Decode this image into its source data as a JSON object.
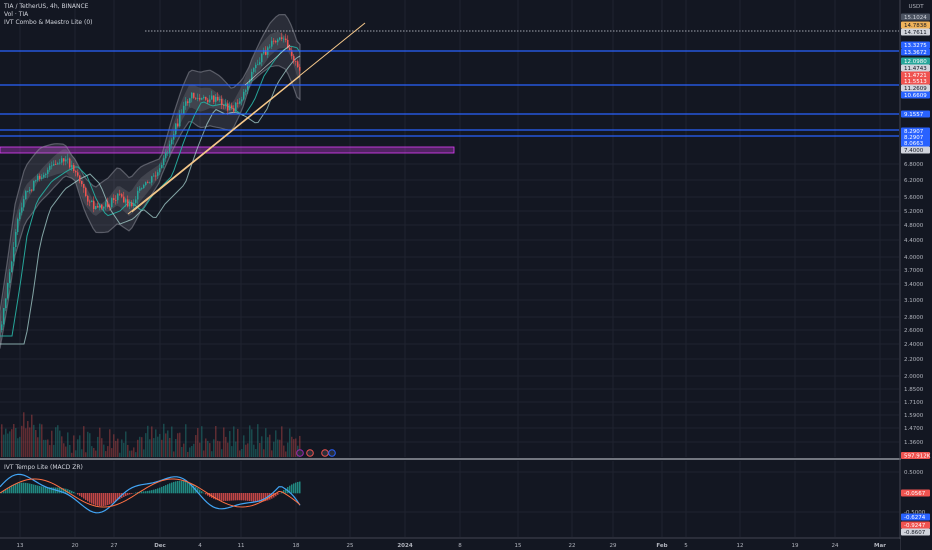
{
  "header": {
    "symbol_line": "TIA / TetherUS, 4h, BINANCE",
    "volume_line": "Vol · TIA",
    "indicator_line": "IVT Combo & Maestro Lite (0)",
    "oscillator_line": "IVT Tempo Lite (MACD ZR)"
  },
  "price_axis": {
    "currency": "USDT",
    "ticks": [
      "6.8000",
      "6.2000",
      "5.6000",
      "5.2000",
      "4.8000",
      "4.4000",
      "4.0000",
      "3.7000",
      "3.4000",
      "3.1000",
      "2.8000",
      "2.6000",
      "2.4000",
      "2.2000",
      "2.0000",
      "1.8500",
      "1.7100",
      "1.5900",
      "1.4700",
      "1.3600"
    ],
    "tags": [
      {
        "text": "15.1024",
        "color": "#4b5361",
        "fg": "#d1d4dc"
      },
      {
        "text": "14.7838",
        "color": "#f0b35a",
        "fg": "#131722"
      },
      {
        "text": "14.7611",
        "color": "#d1d4dc",
        "fg": "#131722"
      },
      {
        "text": "13.3275",
        "color": "#2962ff",
        "fg": "#ffffff"
      },
      {
        "text": "13.3672",
        "color": "#2962ff",
        "fg": "#ffffff"
      },
      {
        "text": "12.0980",
        "color": "#26a69a",
        "fg": "#ffffff"
      },
      {
        "text": "11.4743",
        "color": "#d1d4dc",
        "fg": "#131722"
      },
      {
        "text": "11.4721",
        "color": "#ef5350",
        "fg": "#ffffff"
      },
      {
        "text": "11.5513",
        "color": "#ef5350",
        "fg": "#ffffff"
      },
      {
        "text": "11.2609",
        "color": "#d1d4dc",
        "fg": "#131722"
      },
      {
        "text": "10.6609",
        "color": "#2962ff",
        "fg": "#ffffff"
      },
      {
        "text": "9.1557",
        "color": "#2962ff",
        "fg": "#ffffff"
      },
      {
        "text": "8.2907",
        "color": "#2962ff",
        "fg": "#ffffff"
      },
      {
        "text": "8.2907",
        "color": "#2962ff",
        "fg": "#ffffff"
      },
      {
        "text": "8.0663",
        "color": "#2962ff",
        "fg": "#ffffff"
      },
      {
        "text": "7.4000",
        "color": "#d1d4dc",
        "fg": "#131722"
      }
    ],
    "volume_tag": {
      "text": "597.912K",
      "color": "#ef5350",
      "fg": "#ffffff"
    }
  },
  "osc_axis": {
    "ticks": [
      "0.5000",
      "-0.5000"
    ],
    "tags": [
      {
        "text": "-0.0567",
        "color": "#ef5350",
        "fg": "#ffffff"
      },
      {
        "text": "-0.6274",
        "color": "#2962ff",
        "fg": "#ffffff"
      },
      {
        "text": "-0.9247",
        "color": "#ef5350",
        "fg": "#ffffff"
      },
      {
        "text": "-0.8607",
        "color": "#d1d4dc",
        "fg": "#131722"
      }
    ]
  },
  "time_axis": {
    "labels": [
      "13",
      "20",
      "27",
      "Dec",
      "4",
      "11",
      "18",
      "25",
      "2024",
      "8",
      "15",
      "22",
      "29",
      "Feb",
      "5",
      "12",
      "19",
      "24",
      "Mar"
    ]
  },
  "colors": {
    "bg": "#131722",
    "grid": "#1f2330",
    "up": "#26a69a",
    "down": "#ef5350",
    "hline": "#2962ff",
    "trend": "#f7c98b",
    "zone": "#e040fb"
  },
  "event_icons": [
    "earnings-icon",
    "flag-icon",
    "flag-icon"
  ]
}
